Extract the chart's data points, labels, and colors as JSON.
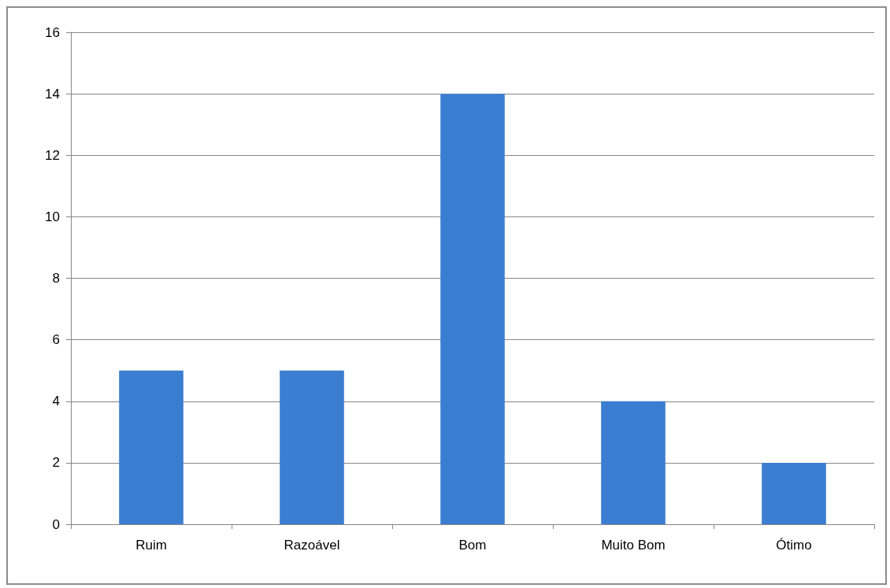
{
  "chart_data": {
    "type": "bar",
    "categories": [
      "Ruim",
      "Razoável",
      "Bom",
      "Muito Bom",
      "Ótimo"
    ],
    "values": [
      5,
      5,
      14,
      4,
      2
    ],
    "color": "#3b7dd0",
    "ylim": [
      0,
      16
    ],
    "yticks": [
      0,
      2,
      4,
      6,
      8,
      10,
      12,
      14,
      16
    ],
    "grid": "y"
  }
}
